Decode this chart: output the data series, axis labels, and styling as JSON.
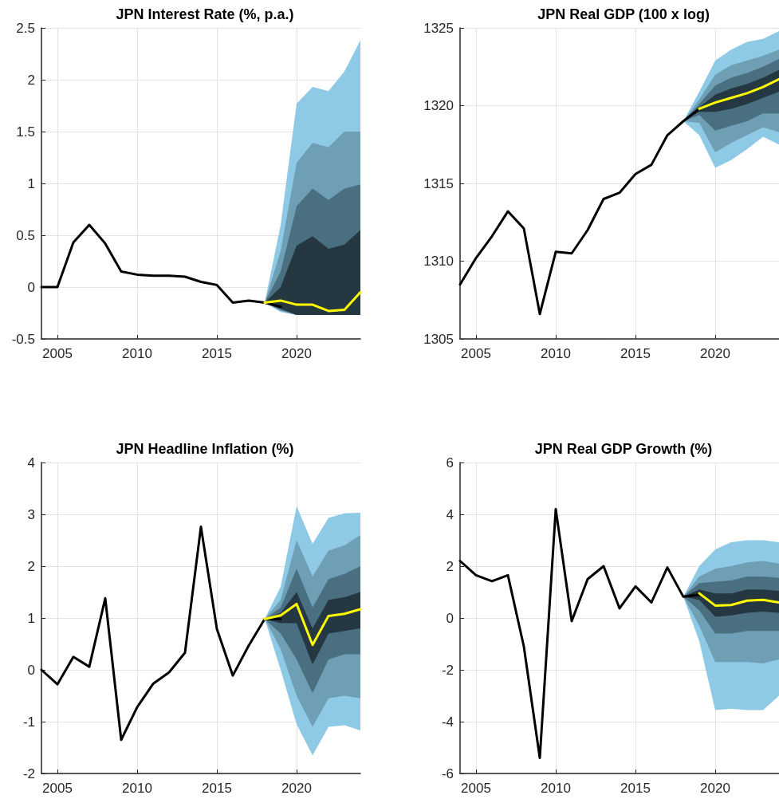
{
  "chart_data": [
    {
      "type": "line",
      "title": "JPN Interest Rate (%, p.a.)",
      "xlim": [
        2004,
        2024
      ],
      "xticks": [
        2005,
        2010,
        2015,
        2020
      ],
      "ylim": [
        -0.5,
        2.5
      ],
      "yticks": [
        -0.5,
        0,
        0.5,
        1,
        1.5,
        2,
        2.5
      ],
      "grid": true,
      "marker": "none",
      "line_style": "solid",
      "series": [
        {
          "type": "area",
          "color": "#8ecae6",
          "x": [
            2018,
            2019,
            2020,
            2021,
            2022,
            2023,
            2024
          ],
          "values": [
            null,
            null,
            null,
            null,
            null,
            null,
            null
          ],
          "lower": [
            -0.15,
            -0.24,
            -0.27,
            -0.27,
            -0.27,
            -0.27,
            -0.27
          ],
          "upper": [
            -0.15,
            0.6,
            1.77,
            1.93,
            1.89,
            2.08,
            2.38
          ]
        },
        {
          "type": "area",
          "color": "#6f9fb5",
          "x": [
            2018,
            2019,
            2020,
            2021,
            2022,
            2023,
            2024
          ],
          "values": [
            null,
            null,
            null,
            null,
            null,
            null,
            null
          ],
          "lower": [
            -0.15,
            -0.23,
            -0.27,
            -0.27,
            -0.27,
            -0.27,
            -0.27
          ],
          "upper": [
            -0.15,
            0.35,
            1.2,
            1.39,
            1.35,
            1.5,
            1.5
          ]
        },
        {
          "type": "area",
          "color": "#4a6f80",
          "x": [
            2018,
            2019,
            2020,
            2021,
            2022,
            2023,
            2024
          ],
          "values": [
            null,
            null,
            null,
            null,
            null,
            null,
            null
          ],
          "lower": [
            -0.15,
            -0.22,
            -0.27,
            -0.27,
            -0.27,
            -0.27,
            -0.27
          ],
          "upper": [
            -0.15,
            0.15,
            0.78,
            0.95,
            0.84,
            0.95,
            0.99
          ]
        },
        {
          "type": "area",
          "color": "#253740",
          "x": [
            2018,
            2019,
            2020,
            2021,
            2022,
            2023,
            2024
          ],
          "values": [
            null,
            null,
            null,
            null,
            null,
            null,
            null
          ],
          "lower": [
            -0.15,
            -0.21,
            -0.27,
            -0.27,
            -0.27,
            -0.27,
            -0.27
          ],
          "upper": [
            -0.15,
            0.0,
            0.4,
            0.49,
            0.37,
            0.41,
            0.55
          ]
        },
        {
          "color": "#000000",
          "x": [
            2004,
            2005,
            2006,
            2007,
            2008,
            2009,
            2010,
            2011,
            2012,
            2013,
            2014,
            2015,
            2016,
            2017,
            2018,
            2019
          ],
          "values": [
            0,
            0,
            0.43,
            0.6,
            0.42,
            0.15,
            0.12,
            0.11,
            0.11,
            0.1,
            0.05,
            0.02,
            -0.15,
            -0.13,
            -0.15,
            -0.19
          ]
        },
        {
          "color": "#ffff00",
          "x": [
            2018,
            2019,
            2020,
            2021,
            2022,
            2023,
            2024
          ],
          "values": [
            -0.15,
            -0.13,
            -0.17,
            -0.17,
            -0.23,
            -0.22,
            -0.05
          ]
        }
      ]
    },
    {
      "type": "line",
      "title": "JPN Real GDP (100 x log)",
      "xlim": [
        2004,
        2024
      ],
      "xticks": [
        2005,
        2010,
        2015,
        2020
      ],
      "ylim": [
        1305,
        1325
      ],
      "yticks": [
        1305,
        1310,
        1315,
        1320,
        1325
      ],
      "grid": true,
      "marker": "none",
      "line_style": "solid",
      "series": [
        {
          "type": "area",
          "color": "#8ecae6",
          "x": [
            2018,
            2019,
            2020,
            2021,
            2022,
            2023,
            2024
          ],
          "values": [
            null,
            null,
            null,
            null,
            null,
            null,
            null
          ],
          "lower": [
            1319,
            1318.1,
            1316,
            1316.5,
            1317.2,
            1318,
            1317.5
          ],
          "upper": [
            1319,
            1320.9,
            1322.9,
            1323.6,
            1324.1,
            1324.3,
            1324.8
          ]
        },
        {
          "type": "area",
          "color": "#6f9fb5",
          "x": [
            2018,
            2019,
            2020,
            2021,
            2022,
            2023,
            2024
          ],
          "values": [
            null,
            null,
            null,
            null,
            null,
            null,
            null
          ],
          "lower": [
            1319,
            1318.9,
            1317,
            1317.6,
            1318.1,
            1318.6,
            1318.3
          ],
          "upper": [
            1319,
            1320.4,
            1322,
            1322.6,
            1322.9,
            1323.2,
            1323.6
          ]
        },
        {
          "type": "area",
          "color": "#4a6f80",
          "x": [
            2018,
            2019,
            2020,
            2021,
            2022,
            2023,
            2024
          ],
          "values": [
            null,
            null,
            null,
            null,
            null,
            null,
            null
          ],
          "lower": [
            1319,
            1319.4,
            1318.4,
            1318.7,
            1319,
            1319.5,
            1319.5
          ],
          "upper": [
            1319,
            1320.1,
            1321.3,
            1321.8,
            1322.1,
            1322.5,
            1323
          ]
        },
        {
          "type": "area",
          "color": "#253740",
          "x": [
            2018,
            2019,
            2020,
            2021,
            2022,
            2023,
            2024
          ],
          "values": [
            null,
            null,
            null,
            null,
            null,
            null,
            null
          ],
          "lower": [
            1319,
            1319.6,
            1319.6,
            1319.8,
            1320.1,
            1320.5,
            1320.9
          ],
          "upper": [
            1319,
            1319.9,
            1320.7,
            1321.1,
            1321.4,
            1321.8,
            1322.3
          ]
        },
        {
          "color": "#000000",
          "x": [
            2004,
            2005,
            2006,
            2007,
            2008,
            2009,
            2010,
            2011,
            2012,
            2013,
            2014,
            2015,
            2016,
            2017,
            2018,
            2019
          ],
          "values": [
            1308.5,
            1310.2,
            1311.6,
            1313.2,
            1312.1,
            1306.6,
            1310.6,
            1310.5,
            1312,
            1314,
            1314.4,
            1315.6,
            1316.2,
            1318.1,
            1319,
            1319.8
          ]
        },
        {
          "color": "#ffff00",
          "x": [
            2019,
            2020,
            2021,
            2022,
            2023,
            2024
          ],
          "values": [
            1319.8,
            1320.2,
            1320.5,
            1320.8,
            1321.2,
            1321.7
          ]
        }
      ]
    },
    {
      "type": "line",
      "title": "JPN Headline Inflation (%)",
      "xlim": [
        2004,
        2024
      ],
      "xticks": [
        2005,
        2010,
        2015,
        2020
      ],
      "ylim": [
        -2,
        4
      ],
      "yticks": [
        -2,
        -1,
        0,
        1,
        2,
        3,
        4
      ],
      "grid": true,
      "marker": "none",
      "line_style": "solid",
      "series": [
        {
          "type": "area",
          "color": "#8ecae6",
          "x": [
            2018,
            2019,
            2020,
            2021,
            2022,
            2023,
            2024
          ],
          "values": [
            null,
            null,
            null,
            null,
            null,
            null,
            null
          ],
          "lower": [
            0.98,
            0,
            -1.05,
            -1.65,
            -1.1,
            -1.07,
            -1.17
          ],
          "upper": [
            0.98,
            1.6,
            3.16,
            2.43,
            2.93,
            3.02,
            3.03
          ]
        },
        {
          "type": "area",
          "color": "#6f9fb5",
          "x": [
            2018,
            2019,
            2020,
            2021,
            2022,
            2023,
            2024
          ],
          "values": [
            null,
            null,
            null,
            null,
            null,
            null,
            null
          ],
          "lower": [
            0.98,
            0.4,
            -0.5,
            -1.1,
            -0.55,
            -0.5,
            -0.55
          ],
          "upper": [
            0.98,
            1.35,
            2.5,
            1.8,
            2.3,
            2.4,
            2.6
          ]
        },
        {
          "type": "area",
          "color": "#4a6f80",
          "x": [
            2018,
            2019,
            2020,
            2021,
            2022,
            2023,
            2024
          ],
          "values": [
            null,
            null,
            null,
            null,
            null,
            null,
            null
          ],
          "lower": [
            0.98,
            0.7,
            0.2,
            -0.45,
            0.2,
            0.3,
            0.3
          ],
          "upper": [
            0.98,
            1.2,
            1.95,
            1.2,
            1.75,
            1.85,
            2
          ]
        },
        {
          "type": "area",
          "color": "#253740",
          "x": [
            2018,
            2019,
            2020,
            2021,
            2022,
            2023,
            2024
          ],
          "values": [
            null,
            null,
            null,
            null,
            null,
            null,
            null
          ],
          "lower": [
            0.98,
            0.9,
            0.9,
            0.1,
            0.7,
            0.75,
            0.8
          ],
          "upper": [
            0.98,
            1.1,
            1.5,
            0.8,
            1.35,
            1.4,
            1.5
          ]
        },
        {
          "color": "#000000",
          "x": [
            2004,
            2005,
            2006,
            2007,
            2008,
            2009,
            2010,
            2011,
            2012,
            2013,
            2014,
            2015,
            2016,
            2017,
            2018,
            2019
          ],
          "values": [
            0,
            -0.28,
            0.25,
            0.06,
            1.38,
            -1.35,
            -0.72,
            -0.27,
            -0.05,
            0.33,
            2.76,
            0.79,
            -0.11,
            0.47,
            0.98,
            0.98
          ]
        },
        {
          "color": "#ffff00",
          "x": [
            2018,
            2019,
            2020,
            2021,
            2022,
            2023,
            2024
          ],
          "values": [
            0.98,
            1.05,
            1.27,
            0.48,
            1.04,
            1.08,
            1.17
          ]
        }
      ]
    },
    {
      "type": "line",
      "title": "JPN Real GDP Growth (%)",
      "xlim": [
        2004,
        2024
      ],
      "xticks": [
        2005,
        2010,
        2015,
        2020
      ],
      "ylim": [
        -6,
        6
      ],
      "yticks": [
        -6,
        -4,
        -2,
        0,
        2,
        4,
        6
      ],
      "grid": true,
      "marker": "none",
      "line_style": "solid",
      "series": [
        {
          "type": "area",
          "color": "#8ecae6",
          "x": [
            2018,
            2019,
            2020,
            2021,
            2022,
            2023,
            2024
          ],
          "values": [
            null,
            null,
            null,
            null,
            null,
            null,
            null
          ],
          "lower": [
            0.82,
            -0.9,
            -3.55,
            -3.5,
            -3.55,
            -3.55,
            -3
          ],
          "upper": [
            0.82,
            2,
            2.65,
            2.92,
            3,
            3,
            2.92
          ]
        },
        {
          "type": "area",
          "color": "#6f9fb5",
          "x": [
            2018,
            2019,
            2020,
            2021,
            2022,
            2023,
            2024
          ],
          "values": [
            null,
            null,
            null,
            null,
            null,
            null,
            null
          ],
          "lower": [
            0.82,
            -0.3,
            -1.7,
            -1.7,
            -1.7,
            -1.75,
            -1.6
          ],
          "upper": [
            0.82,
            1.6,
            1.9,
            2,
            2.15,
            2.2,
            2.1
          ]
        },
        {
          "type": "area",
          "color": "#4a6f80",
          "x": [
            2018,
            2019,
            2020,
            2021,
            2022,
            2023,
            2024
          ],
          "values": [
            null,
            null,
            null,
            null,
            null,
            null,
            null
          ],
          "lower": [
            0.82,
            0.3,
            -0.6,
            -0.6,
            -0.5,
            -0.5,
            -0.5
          ],
          "upper": [
            0.82,
            1.35,
            1.4,
            1.45,
            1.6,
            1.6,
            1.55
          ]
        },
        {
          "type": "area",
          "color": "#253740",
          "x": [
            2018,
            2019,
            2020,
            2021,
            2022,
            2023,
            2024
          ],
          "values": [
            null,
            null,
            null,
            null,
            null,
            null,
            null
          ],
          "lower": [
            0.82,
            0.7,
            0.05,
            0.1,
            0.2,
            0.25,
            0.2
          ],
          "upper": [
            0.82,
            1.1,
            0.95,
            0.95,
            1.1,
            1.1,
            1.05
          ]
        },
        {
          "color": "#000000",
          "x": [
            2004,
            2005,
            2006,
            2007,
            2008,
            2009,
            2010,
            2011,
            2012,
            2013,
            2014,
            2015,
            2016,
            2017,
            2018,
            2019
          ],
          "values": [
            2.2,
            1.65,
            1.42,
            1.65,
            -1.1,
            -5.4,
            4.2,
            -0.12,
            1.5,
            2,
            0.37,
            1.22,
            0.6,
            1.95,
            0.82,
            0.9
          ]
        },
        {
          "color": "#ffff00",
          "x": [
            2019,
            2020,
            2021,
            2022,
            2023,
            2024
          ],
          "values": [
            0.95,
            0.48,
            0.5,
            0.67,
            0.7,
            0.6
          ]
        }
      ]
    }
  ]
}
